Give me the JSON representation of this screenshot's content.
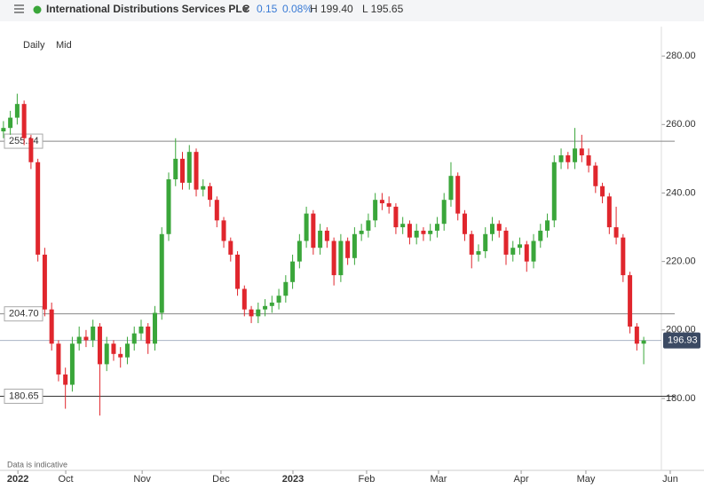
{
  "header": {
    "title": "International Distributions Services PLC",
    "change": "0.15",
    "change_pct": "0.08%",
    "high": "H 199.40",
    "low": "L 195.65"
  },
  "controls": {
    "interval": "Daily",
    "price_type": "Mid"
  },
  "footer": "Data is indicative",
  "chart_data": {
    "type": "candlestick",
    "up_color": "#3aa63a",
    "down_color": "#e0262d",
    "xlim": [
      0,
      196
    ],
    "ylim": [
      159,
      286
    ],
    "yticks": [
      {
        "value": 180,
        "label": "180.00"
      },
      {
        "value": 200,
        "label": "200.00"
      },
      {
        "value": 220,
        "label": "220.00"
      },
      {
        "value": 240,
        "label": "240.00"
      },
      {
        "value": 260,
        "label": "260.00"
      },
      {
        "value": 280,
        "label": "280.00"
      }
    ],
    "xticks": [
      {
        "value": 5.2,
        "label": "2022"
      },
      {
        "value": 19.1,
        "label": "Oct"
      },
      {
        "value": 41.3,
        "label": "Nov"
      },
      {
        "value": 64.2,
        "label": "Dec"
      },
      {
        "value": 85.1,
        "label": "2023"
      },
      {
        "value": 106.5,
        "label": "Feb"
      },
      {
        "value": 127.4,
        "label": "Mar"
      },
      {
        "value": 151.4,
        "label": "Apr"
      },
      {
        "value": 170.2,
        "label": "May"
      },
      {
        "value": 194.7,
        "label": "Jun"
      }
    ],
    "levels": [
      {
        "value": 255.14,
        "label": "255.14"
      },
      {
        "value": 204.7,
        "label": "204.70"
      },
      {
        "value": 180.65,
        "label": "180.65"
      }
    ],
    "last_price": {
      "value": 196.93,
      "label": "196.93"
    },
    "x": [
      1,
      3,
      5,
      7,
      9,
      11,
      13,
      15,
      17,
      19,
      21,
      23,
      25,
      27,
      29,
      31,
      33,
      35,
      37,
      39,
      41,
      43,
      45,
      47,
      49,
      51,
      53,
      55,
      57,
      59,
      61,
      63,
      65,
      67,
      69,
      71,
      73,
      75,
      77,
      79,
      81,
      83,
      85,
      87,
      89,
      91,
      93,
      95,
      97,
      99,
      101,
      103,
      105,
      107,
      109,
      111,
      113,
      115,
      117,
      119,
      121,
      123,
      125,
      127,
      129,
      131,
      133,
      135,
      137,
      139,
      141,
      143,
      145,
      147,
      149,
      151,
      153,
      155,
      157,
      159,
      161,
      163,
      165,
      167,
      169,
      171,
      173,
      175,
      177,
      179,
      181,
      183,
      185,
      187
    ],
    "candles": [
      [
        258,
        261,
        256,
        259
      ],
      [
        259,
        264,
        257,
        262
      ],
      [
        262,
        269,
        260,
        266
      ],
      [
        266,
        267,
        254,
        256
      ],
      [
        256,
        257,
        247,
        249
      ],
      [
        249,
        250,
        220,
        222
      ],
      [
        222,
        224,
        204,
        206
      ],
      [
        206,
        208,
        194,
        196
      ],
      [
        196,
        197,
        185,
        187
      ],
      [
        187,
        189,
        177,
        184
      ],
      [
        184,
        198,
        182,
        196
      ],
      [
        196,
        201,
        194,
        198
      ],
      [
        198,
        200,
        195,
        197
      ],
      [
        197,
        203,
        195,
        201
      ],
      [
        201,
        202,
        175,
        190
      ],
      [
        190,
        198,
        188,
        196
      ],
      [
        196,
        197,
        191,
        193
      ],
      [
        193,
        195,
        189,
        192
      ],
      [
        192,
        198,
        190,
        196
      ],
      [
        196,
        201,
        194,
        199
      ],
      [
        199,
        203,
        197,
        201
      ],
      [
        201,
        202,
        193,
        196
      ],
      [
        196,
        207,
        194,
        205
      ],
      [
        205,
        230,
        203,
        228
      ],
      [
        228,
        246,
        226,
        244
      ],
      [
        244,
        256,
        242,
        250
      ],
      [
        250,
        252,
        241,
        243
      ],
      [
        243,
        254,
        241,
        252
      ],
      [
        252,
        253,
        239,
        241
      ],
      [
        241,
        244,
        239,
        242
      ],
      [
        242,
        243,
        236,
        238
      ],
      [
        238,
        239,
        230,
        232
      ],
      [
        232,
        233,
        224,
        226
      ],
      [
        226,
        227,
        220,
        222
      ],
      [
        222,
        223,
        210,
        212
      ],
      [
        212,
        213,
        204,
        206
      ],
      [
        206,
        207,
        202,
        204
      ],
      [
        204,
        208,
        202,
        206
      ],
      [
        206,
        209,
        204,
        207
      ],
      [
        207,
        210,
        205,
        208
      ],
      [
        208,
        212,
        206,
        210
      ],
      [
        210,
        216,
        208,
        214
      ],
      [
        214,
        222,
        212,
        220
      ],
      [
        220,
        228,
        218,
        226
      ],
      [
        226,
        236,
        224,
        234
      ],
      [
        234,
        235,
        222,
        224
      ],
      [
        224,
        231,
        222,
        229
      ],
      [
        229,
        230,
        224,
        226
      ],
      [
        226,
        227,
        213,
        216
      ],
      [
        216,
        228,
        214,
        226
      ],
      [
        226,
        227,
        219,
        221
      ],
      [
        221,
        230,
        219,
        228
      ],
      [
        228,
        231,
        226,
        229
      ],
      [
        229,
        234,
        227,
        232
      ],
      [
        232,
        240,
        230,
        238
      ],
      [
        238,
        240,
        235,
        237
      ],
      [
        237,
        239,
        234,
        236
      ],
      [
        236,
        237,
        228,
        230
      ],
      [
        230,
        233,
        228,
        231
      ],
      [
        231,
        232,
        225,
        227
      ],
      [
        227,
        231,
        225,
        229
      ],
      [
        229,
        230,
        226,
        228
      ],
      [
        228,
        231,
        226,
        229
      ],
      [
        229,
        233,
        227,
        231
      ],
      [
        231,
        240,
        229,
        238
      ],
      [
        238,
        249,
        236,
        245
      ],
      [
        245,
        246,
        232,
        234
      ],
      [
        234,
        235,
        226,
        228
      ],
      [
        228,
        229,
        218,
        222
      ],
      [
        222,
        225,
        220,
        223
      ],
      [
        223,
        230,
        221,
        228
      ],
      [
        228,
        233,
        226,
        231
      ],
      [
        231,
        232,
        227,
        229
      ],
      [
        229,
        230,
        219,
        222
      ],
      [
        222,
        226,
        220,
        224
      ],
      [
        224,
        227,
        222,
        225
      ],
      [
        225,
        226,
        217,
        220
      ],
      [
        220,
        228,
        218,
        226
      ],
      [
        226,
        231,
        224,
        229
      ],
      [
        229,
        234,
        227,
        232
      ],
      [
        232,
        251,
        230,
        249
      ],
      [
        249,
        253,
        247,
        251
      ],
      [
        251,
        252,
        247,
        249
      ],
      [
        249,
        259,
        247,
        253
      ],
      [
        253,
        257,
        249,
        251
      ],
      [
        251,
        253,
        246,
        248
      ],
      [
        248,
        249,
        240,
        242
      ],
      [
        242,
        243,
        237,
        239
      ],
      [
        239,
        240,
        228,
        230
      ],
      [
        230,
        236,
        225,
        227
      ],
      [
        227,
        228,
        214,
        216
      ],
      [
        216,
        217,
        199,
        201
      ],
      [
        201,
        202,
        194,
        196
      ],
      [
        196,
        198,
        190,
        196.93
      ]
    ]
  }
}
